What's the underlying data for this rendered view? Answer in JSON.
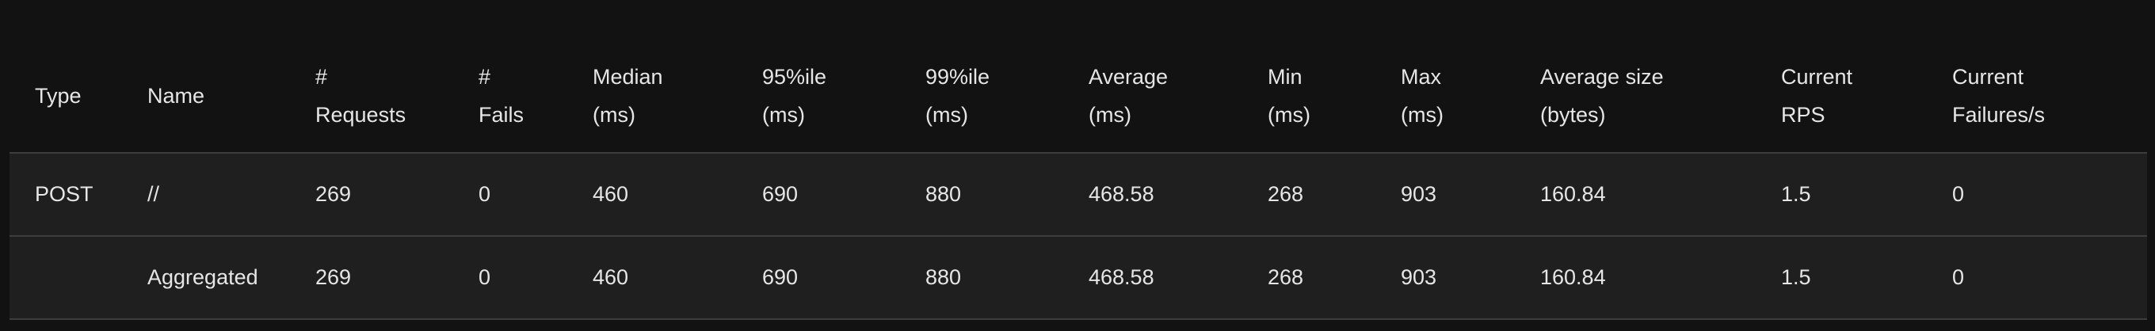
{
  "table": {
    "headers": [
      [
        "Type"
      ],
      [
        "Name"
      ],
      [
        "#",
        "Requests"
      ],
      [
        "#",
        "Fails"
      ],
      [
        "Median",
        "(ms)"
      ],
      [
        "95%ile",
        "(ms)"
      ],
      [
        "99%ile",
        "(ms)"
      ],
      [
        "Average",
        "(ms)"
      ],
      [
        "Min",
        "(ms)"
      ],
      [
        "Max",
        "(ms)"
      ],
      [
        "Average size",
        "(bytes)"
      ],
      [
        "Current",
        "RPS"
      ],
      [
        "Current",
        "Failures/s"
      ]
    ],
    "rows": [
      [
        "POST",
        "//",
        "269",
        "0",
        "460",
        "690",
        "880",
        "468.58",
        "268",
        "903",
        "160.84",
        "1.5",
        "0"
      ],
      [
        "",
        "Aggregated",
        "269",
        "0",
        "460",
        "690",
        "880",
        "468.58",
        "268",
        "903",
        "160.84",
        "1.5",
        "0"
      ]
    ]
  }
}
